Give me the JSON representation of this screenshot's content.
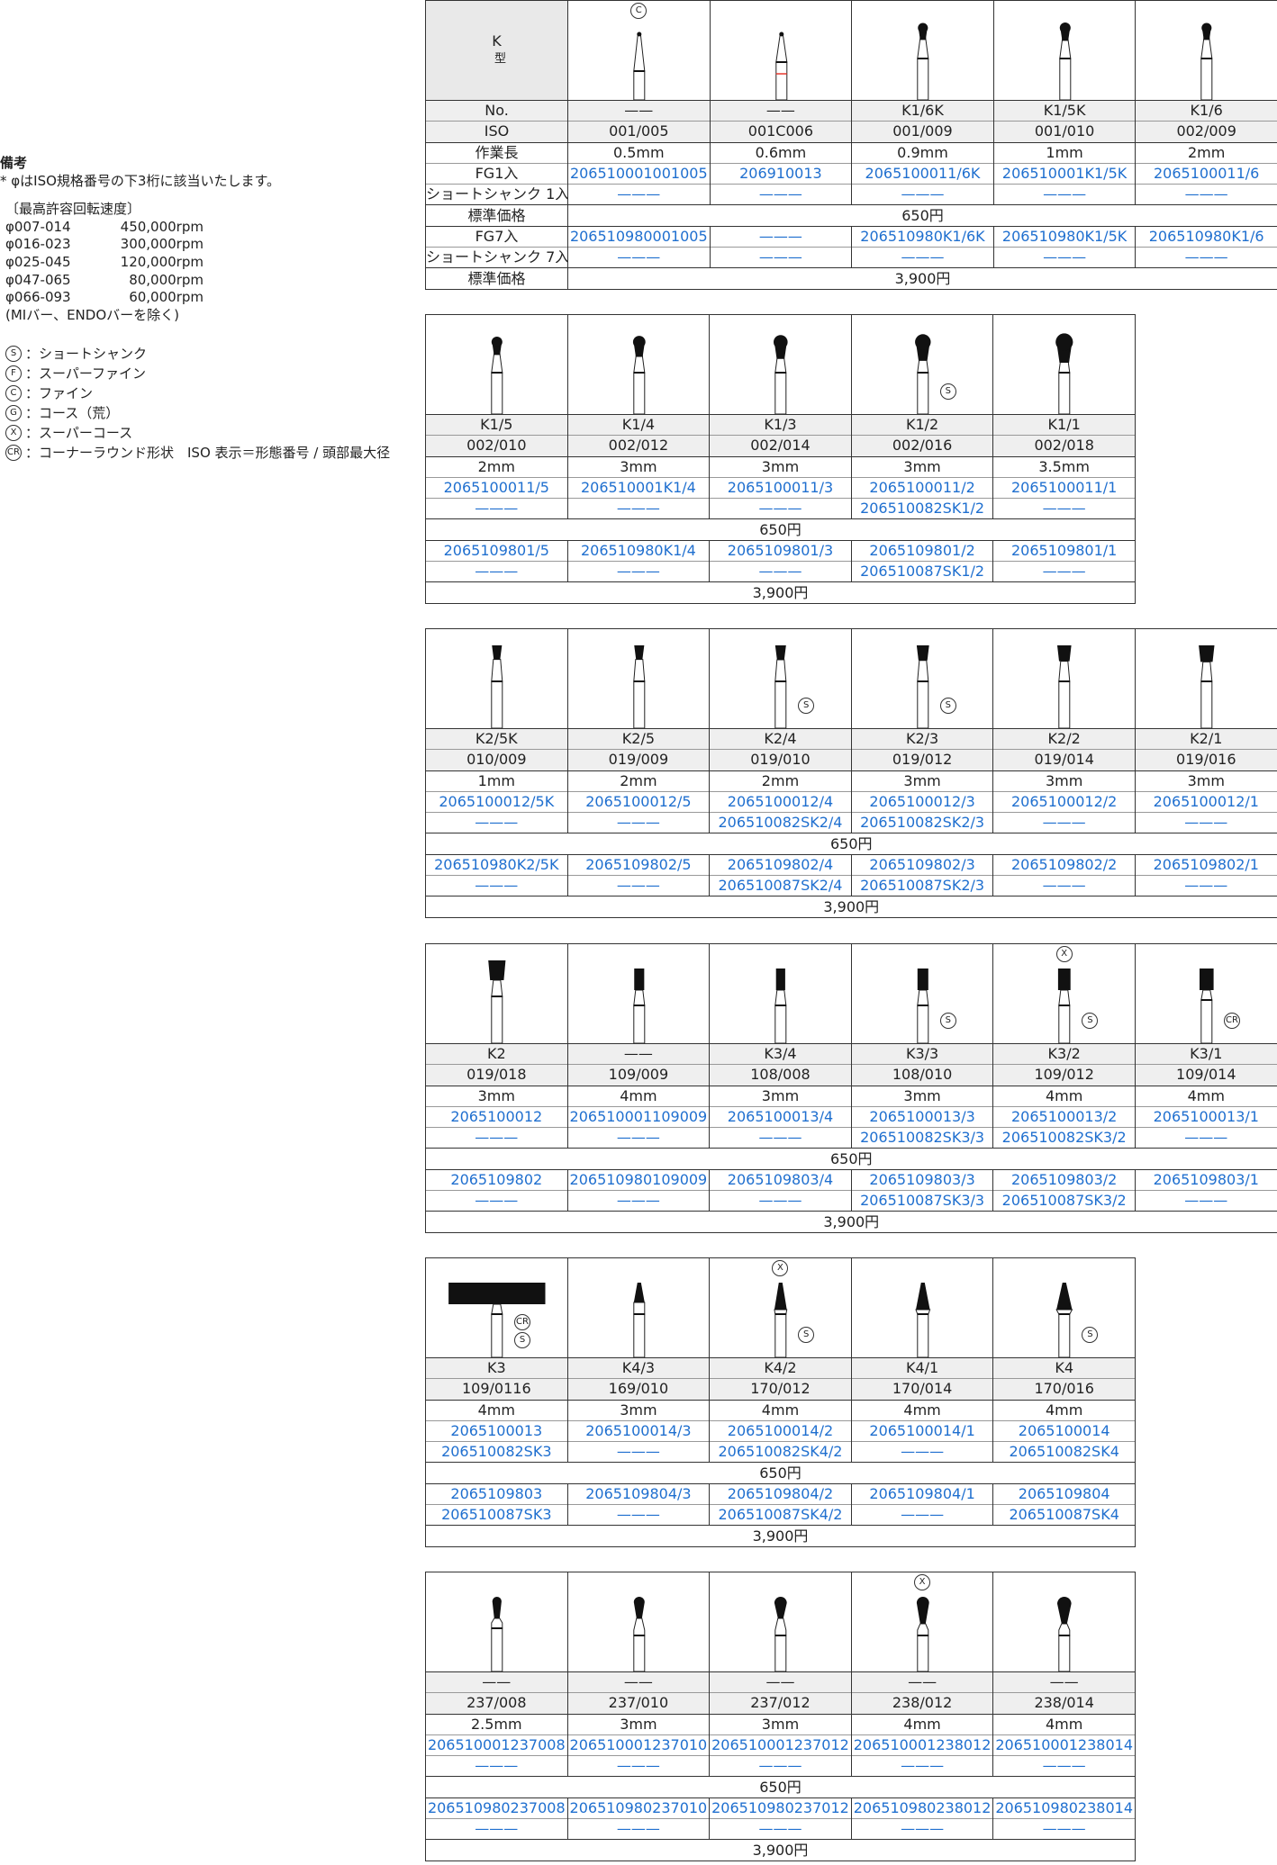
{
  "notes": {
    "title": "備考",
    "line1": "* φはISO規格番号の下3桁に該当いたします。",
    "speed_title": "〔最高許容回転速度〕",
    "speeds": [
      {
        "range": "φ007-014",
        "rpm": "450,000rpm"
      },
      {
        "range": "φ016-023",
        "rpm": "300,000rpm"
      },
      {
        "range": "φ025-045",
        "rpm": "120,000rpm"
      },
      {
        "range": "φ047-065",
        "rpm": "80,000rpm"
      },
      {
        "range": "φ066-093",
        "rpm": "60,000rpm"
      }
    ],
    "exclusion": "(MIバー、ENDOバーを除く)",
    "legend": [
      {
        "symbol": "S",
        "text": "：ショートシャンク"
      },
      {
        "symbol": "F",
        "text": "：スーパーファイン"
      },
      {
        "symbol": "C",
        "text": "：ファイン"
      },
      {
        "symbol": "G",
        "text": "：コース（荒）"
      },
      {
        "symbol": "X",
        "text": "：スーパーコース"
      },
      {
        "symbol": "CR",
        "text": "：コーナーラウンド形状　ISO 表示＝形態番号 / 頭部最大径"
      }
    ]
  },
  "header": {
    "type_letter": "K",
    "type_label": "型"
  },
  "row_labels": [
    "No.",
    "ISO",
    "作業長",
    "FG1入",
    "ショートシャンク 1入",
    "標準価格",
    "FG7入",
    "ショートシャンク 7入",
    "標準価格"
  ],
  "price_1": "650円",
  "price_7": "3,900円",
  "dash": "——",
  "blue_dash": "———",
  "colors": {
    "code": "#1f6fcf",
    "grey_row": "#efefef",
    "border": "#333333",
    "fine_stripe": "#e8382e"
  },
  "tables": [
    {
      "columns": [
        {
          "shape": "ball-point",
          "marks_top": [
            "C"
          ],
          "marks_side": [],
          "no": "——",
          "iso": "001/005",
          "len": "0.5mm",
          "fg1": "206510001001005",
          "ss1": "———",
          "fg7": "206510980001005",
          "ss7": "———"
        },
        {
          "shape": "ball-point",
          "stripe": "fine",
          "marks_top": [],
          "marks_side": [],
          "no": "——",
          "iso": "001C006",
          "len": "0.6mm",
          "fg1": "206910013",
          "ss1": "———",
          "fg7": "———",
          "ss7": "———"
        },
        {
          "shape": "ball",
          "marks_top": [],
          "marks_side": [],
          "no": "K1/6K",
          "iso": "001/009",
          "len": "0.9mm",
          "fg1": "2065100011/6K",
          "ss1": "———",
          "fg7": "206510980K1/6K",
          "ss7": "———"
        },
        {
          "shape": "ball",
          "marks_top": [],
          "marks_side": [],
          "no": "K1/5K",
          "iso": "001/010",
          "len": "1mm",
          "fg1": "206510001K1/5K",
          "ss1": "———",
          "fg7": "206510980K1/5K",
          "ss7": "———"
        },
        {
          "shape": "ball",
          "marks_top": [],
          "marks_side": [],
          "no": "K1/6",
          "iso": "002/009",
          "len": "2mm",
          "fg1": "2065100011/6",
          "ss1": "———",
          "fg7": "206510980K1/6",
          "ss7": "———"
        }
      ]
    },
    {
      "columns": [
        {
          "shape": "ball",
          "marks_top": [],
          "marks_side": [],
          "no": "K1/5",
          "iso": "002/010",
          "len": "2mm",
          "fg1": "2065100011/5",
          "ss1": "———",
          "fg7": "2065109801/5",
          "ss7": "———"
        },
        {
          "shape": "ball",
          "marks_top": [],
          "marks_side": [],
          "no": "K1/4",
          "iso": "002/012",
          "len": "3mm",
          "fg1": "206510001K1/4",
          "ss1": "———",
          "fg7": "206510980K1/4",
          "ss7": "———"
        },
        {
          "shape": "ball",
          "marks_top": [],
          "marks_side": [],
          "no": "K1/3",
          "iso": "002/014",
          "len": "3mm",
          "fg1": "2065100011/3",
          "ss1": "———",
          "fg7": "2065109801/3",
          "ss7": "———"
        },
        {
          "shape": "ball",
          "marks_top": [],
          "marks_side": [
            "S"
          ],
          "no": "K1/2",
          "iso": "002/016",
          "len": "3mm",
          "fg1": "2065100011/2",
          "ss1": "206510082SK1/2",
          "fg7": "2065109801/2",
          "ss7": "206510087SK1/2"
        },
        {
          "shape": "ball",
          "marks_top": [],
          "marks_side": [],
          "no": "K1/1",
          "iso": "002/018",
          "len": "3.5mm",
          "fg1": "2065100011/1",
          "ss1": "———",
          "fg7": "2065109801/1",
          "ss7": "———"
        }
      ]
    },
    {
      "columns": [
        {
          "shape": "inverted-cone",
          "marks_top": [],
          "marks_side": [],
          "no": "K2/5K",
          "iso": "010/009",
          "len": "1mm",
          "fg1": "2065100012/5K",
          "ss1": "———",
          "fg7": "206510980K2/5K",
          "ss7": "———"
        },
        {
          "shape": "inverted-cone",
          "marks_top": [],
          "marks_side": [],
          "no": "K2/5",
          "iso": "019/009",
          "len": "2mm",
          "fg1": "2065100012/5",
          "ss1": "———",
          "fg7": "2065109802/5",
          "ss7": "———"
        },
        {
          "shape": "inverted-cone",
          "marks_top": [],
          "marks_side": [
            "S"
          ],
          "no": "K2/4",
          "iso": "019/010",
          "len": "2mm",
          "fg1": "2065100012/4",
          "ss1": "206510082SK2/4",
          "fg7": "2065109802/4",
          "ss7": "206510087SK2/4"
        },
        {
          "shape": "inverted-cone",
          "marks_top": [],
          "marks_side": [
            "S"
          ],
          "no": "K2/3",
          "iso": "019/012",
          "len": "3mm",
          "fg1": "2065100012/3",
          "ss1": "206510082SK2/3",
          "fg7": "2065109802/3",
          "ss7": "206510087SK2/3"
        },
        {
          "shape": "inverted-cone",
          "marks_top": [],
          "marks_side": [],
          "no": "K2/2",
          "iso": "019/014",
          "len": "3mm",
          "fg1": "2065100012/2",
          "ss1": "———",
          "fg7": "2065109802/2",
          "ss7": "———"
        },
        {
          "shape": "inverted-cone",
          "marks_top": [],
          "marks_side": [],
          "no": "K2/1",
          "iso": "019/016",
          "len": "3mm",
          "fg1": "2065100012/1",
          "ss1": "———",
          "fg7": "2065109802/1",
          "ss7": "———"
        }
      ]
    },
    {
      "columns": [
        {
          "shape": "inverted-cone-long",
          "marks_top": [],
          "marks_side": [],
          "no": "K2",
          "iso": "019/018",
          "len": "3mm",
          "fg1": "2065100012",
          "ss1": "———",
          "fg7": "2065109802",
          "ss7": "———"
        },
        {
          "shape": "cylinder",
          "marks_top": [],
          "marks_side": [],
          "no": "——",
          "iso": "109/009",
          "len": "4mm",
          "fg1": "206510001109009",
          "ss1": "———",
          "fg7": "206510980109009",
          "ss7": "———"
        },
        {
          "shape": "cylinder",
          "marks_top": [],
          "marks_side": [],
          "no": "K3/4",
          "iso": "108/008",
          "len": "3mm",
          "fg1": "2065100013/4",
          "ss1": "———",
          "fg7": "2065109803/4",
          "ss7": "———"
        },
        {
          "shape": "cylinder",
          "marks_top": [],
          "marks_side": [
            "S"
          ],
          "no": "K3/3",
          "iso": "108/010",
          "len": "3mm",
          "fg1": "2065100013/3",
          "ss1": "206510082SK3/3",
          "fg7": "2065109803/3",
          "ss7": "206510087SK3/3"
        },
        {
          "shape": "cylinder",
          "marks_top": [
            "X"
          ],
          "marks_side": [
            "S"
          ],
          "no": "K3/2",
          "iso": "109/012",
          "len": "4mm",
          "fg1": "2065100013/2",
          "ss1": "206510082SK3/2",
          "fg7": "2065109803/2",
          "ss7": "206510087SK3/2"
        },
        {
          "shape": "cylinder",
          "marks_top": [],
          "marks_side": [
            "CR"
          ],
          "no": "K3/1",
          "iso": "109/014",
          "len": "4mm",
          "fg1": "2065100013/1",
          "ss1": "———",
          "fg7": "2065109803/1",
          "ss7": "———"
        }
      ]
    },
    {
      "columns": [
        {
          "shape": "cylinder",
          "marks_top": [],
          "marks_side": [
            "CR",
            "S"
          ],
          "no": "K3",
          "iso": "109/0116",
          "len": "4mm",
          "fg1": "2065100013",
          "ss1": "206510082SK3",
          "fg7": "2065109803",
          "ss7": "206510087SK3"
        },
        {
          "shape": "taper",
          "marks_top": [],
          "marks_side": [],
          "no": "K4/3",
          "iso": "169/010",
          "len": "3mm",
          "fg1": "2065100014/3",
          "ss1": "———",
          "fg7": "2065109804/3",
          "ss7": "———"
        },
        {
          "shape": "taper",
          "marks_top": [
            "X"
          ],
          "marks_side": [
            "S"
          ],
          "no": "K4/2",
          "iso": "170/012",
          "len": "4mm",
          "fg1": "2065100014/2",
          "ss1": "206510082SK4/2",
          "fg7": "2065109804/2",
          "ss7": "206510087SK4/2"
        },
        {
          "shape": "taper",
          "marks_top": [],
          "marks_side": [],
          "no": "K4/1",
          "iso": "170/014",
          "len": "4mm",
          "fg1": "2065100014/1",
          "ss1": "———",
          "fg7": "2065109804/1",
          "ss7": "———"
        },
        {
          "shape": "taper",
          "marks_top": [],
          "marks_side": [
            "S"
          ],
          "no": "K4",
          "iso": "170/016",
          "len": "4mm",
          "fg1": "2065100014",
          "ss1": "206510082SK4",
          "fg7": "2065109804",
          "ss7": "206510087SK4"
        }
      ]
    },
    {
      "columns": [
        {
          "shape": "pear",
          "marks_top": [],
          "marks_side": [],
          "no": "——",
          "iso": "237/008",
          "len": "2.5mm",
          "fg1": "206510001237008",
          "ss1": "———",
          "fg7": "206510980237008",
          "ss7": "———"
        },
        {
          "shape": "pear",
          "marks_top": [],
          "marks_side": [],
          "no": "——",
          "iso": "237/010",
          "len": "3mm",
          "fg1": "206510001237010",
          "ss1": "———",
          "fg7": "206510980237010",
          "ss7": "———"
        },
        {
          "shape": "pear",
          "marks_top": [],
          "marks_side": [],
          "no": "——",
          "iso": "237/012",
          "len": "3mm",
          "fg1": "206510001237012",
          "ss1": "———",
          "fg7": "206510980237012",
          "ss7": "———"
        },
        {
          "shape": "pear-long",
          "marks_top": [
            "X"
          ],
          "marks_side": [],
          "no": "——",
          "iso": "238/012",
          "len": "4mm",
          "fg1": "206510001238012",
          "ss1": "———",
          "fg7": "206510980238012",
          "ss7": "———"
        },
        {
          "shape": "pear-long",
          "marks_top": [],
          "marks_side": [],
          "no": "——",
          "iso": "238/014",
          "len": "4mm",
          "fg1": "206510001238014",
          "ss1": "———",
          "fg7": "206510980238014",
          "ss7": "———"
        }
      ]
    }
  ]
}
